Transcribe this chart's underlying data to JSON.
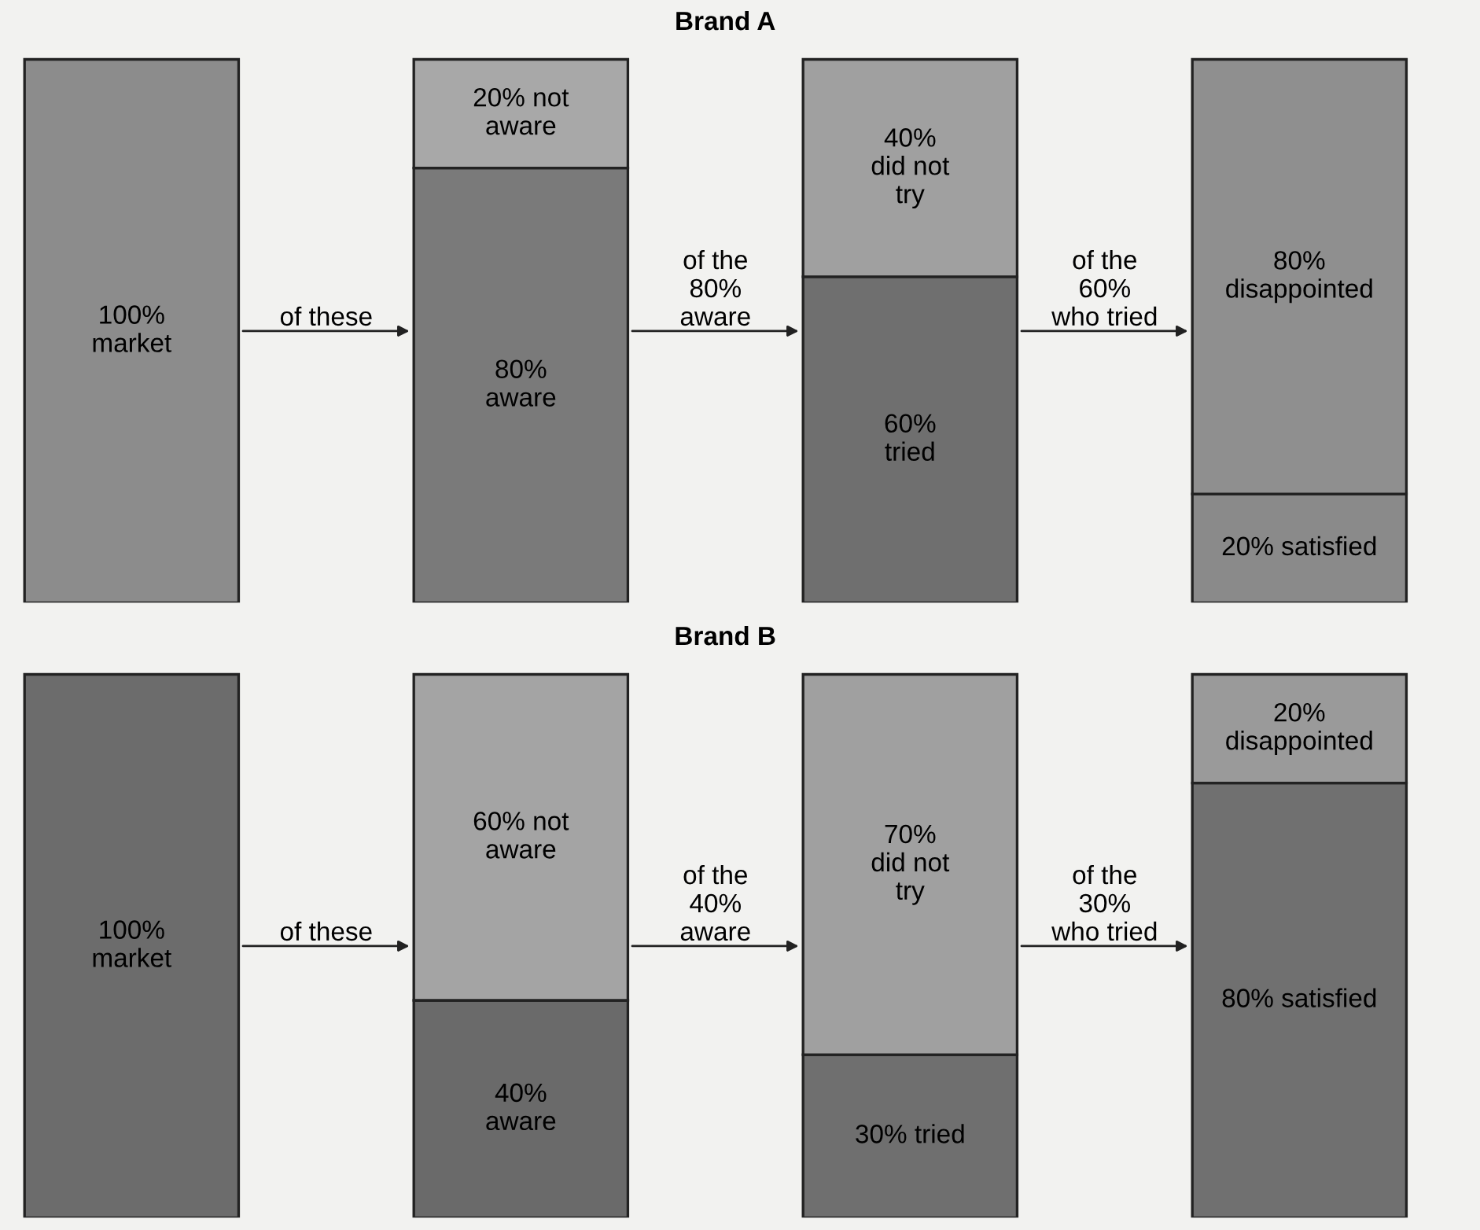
{
  "chart_data": [
    {
      "type": "bar",
      "title": "Brand A",
      "stacked": true,
      "tick_labels": false,
      "categories": [
        null,
        null,
        null,
        null
      ],
      "series": [
        {
          "colors": [
            "#8c8c8c",
            "#7a7a7a",
            "#6f6f6f",
            "#8a8a8a"
          ],
          "values": [
            100,
            80,
            60,
            20
          ],
          "value_labels": [
            "100%\nmarket",
            "80%\naware",
            "60%\ntried",
            "20% satisfied"
          ]
        },
        {
          "colors": [
            null,
            "#a8a8a8",
            "#a0a0a0",
            "#8f8f8f"
          ],
          "values": [
            null,
            20,
            40,
            80
          ],
          "value_labels": [
            null,
            "20% not\naware",
            "40%\ndid not\ntry",
            "80%\ndisappointed"
          ]
        }
      ],
      "annotations": [
        "of these",
        "of the\n80%\naware",
        "of the\n60%\nwho tried"
      ]
    },
    {
      "type": "bar",
      "title": "Brand B",
      "stacked": true,
      "tick_labels": false,
      "categories": [
        null,
        null,
        null,
        null
      ],
      "series": [
        {
          "colors": [
            "#6c6c6c",
            "#6a6a6a",
            "#6f6f6f",
            "#707070"
          ],
          "values": [
            100,
            40,
            30,
            80
          ],
          "value_labels": [
            "100%\nmarket",
            "40%\naware",
            "30% tried",
            "80% satisfied"
          ]
        },
        {
          "colors": [
            null,
            "#a4a4a4",
            "#a0a0a0",
            "#9a9a9a"
          ],
          "values": [
            null,
            60,
            70,
            20
          ],
          "value_labels": [
            null,
            "60% not\naware",
            "70%\ndid not\ntry",
            "20%\ndisappointed"
          ]
        }
      ],
      "annotations": [
        "of these",
        "of the\n40%\naware",
        "of the\n30%\nwho tried"
      ]
    }
  ]
}
